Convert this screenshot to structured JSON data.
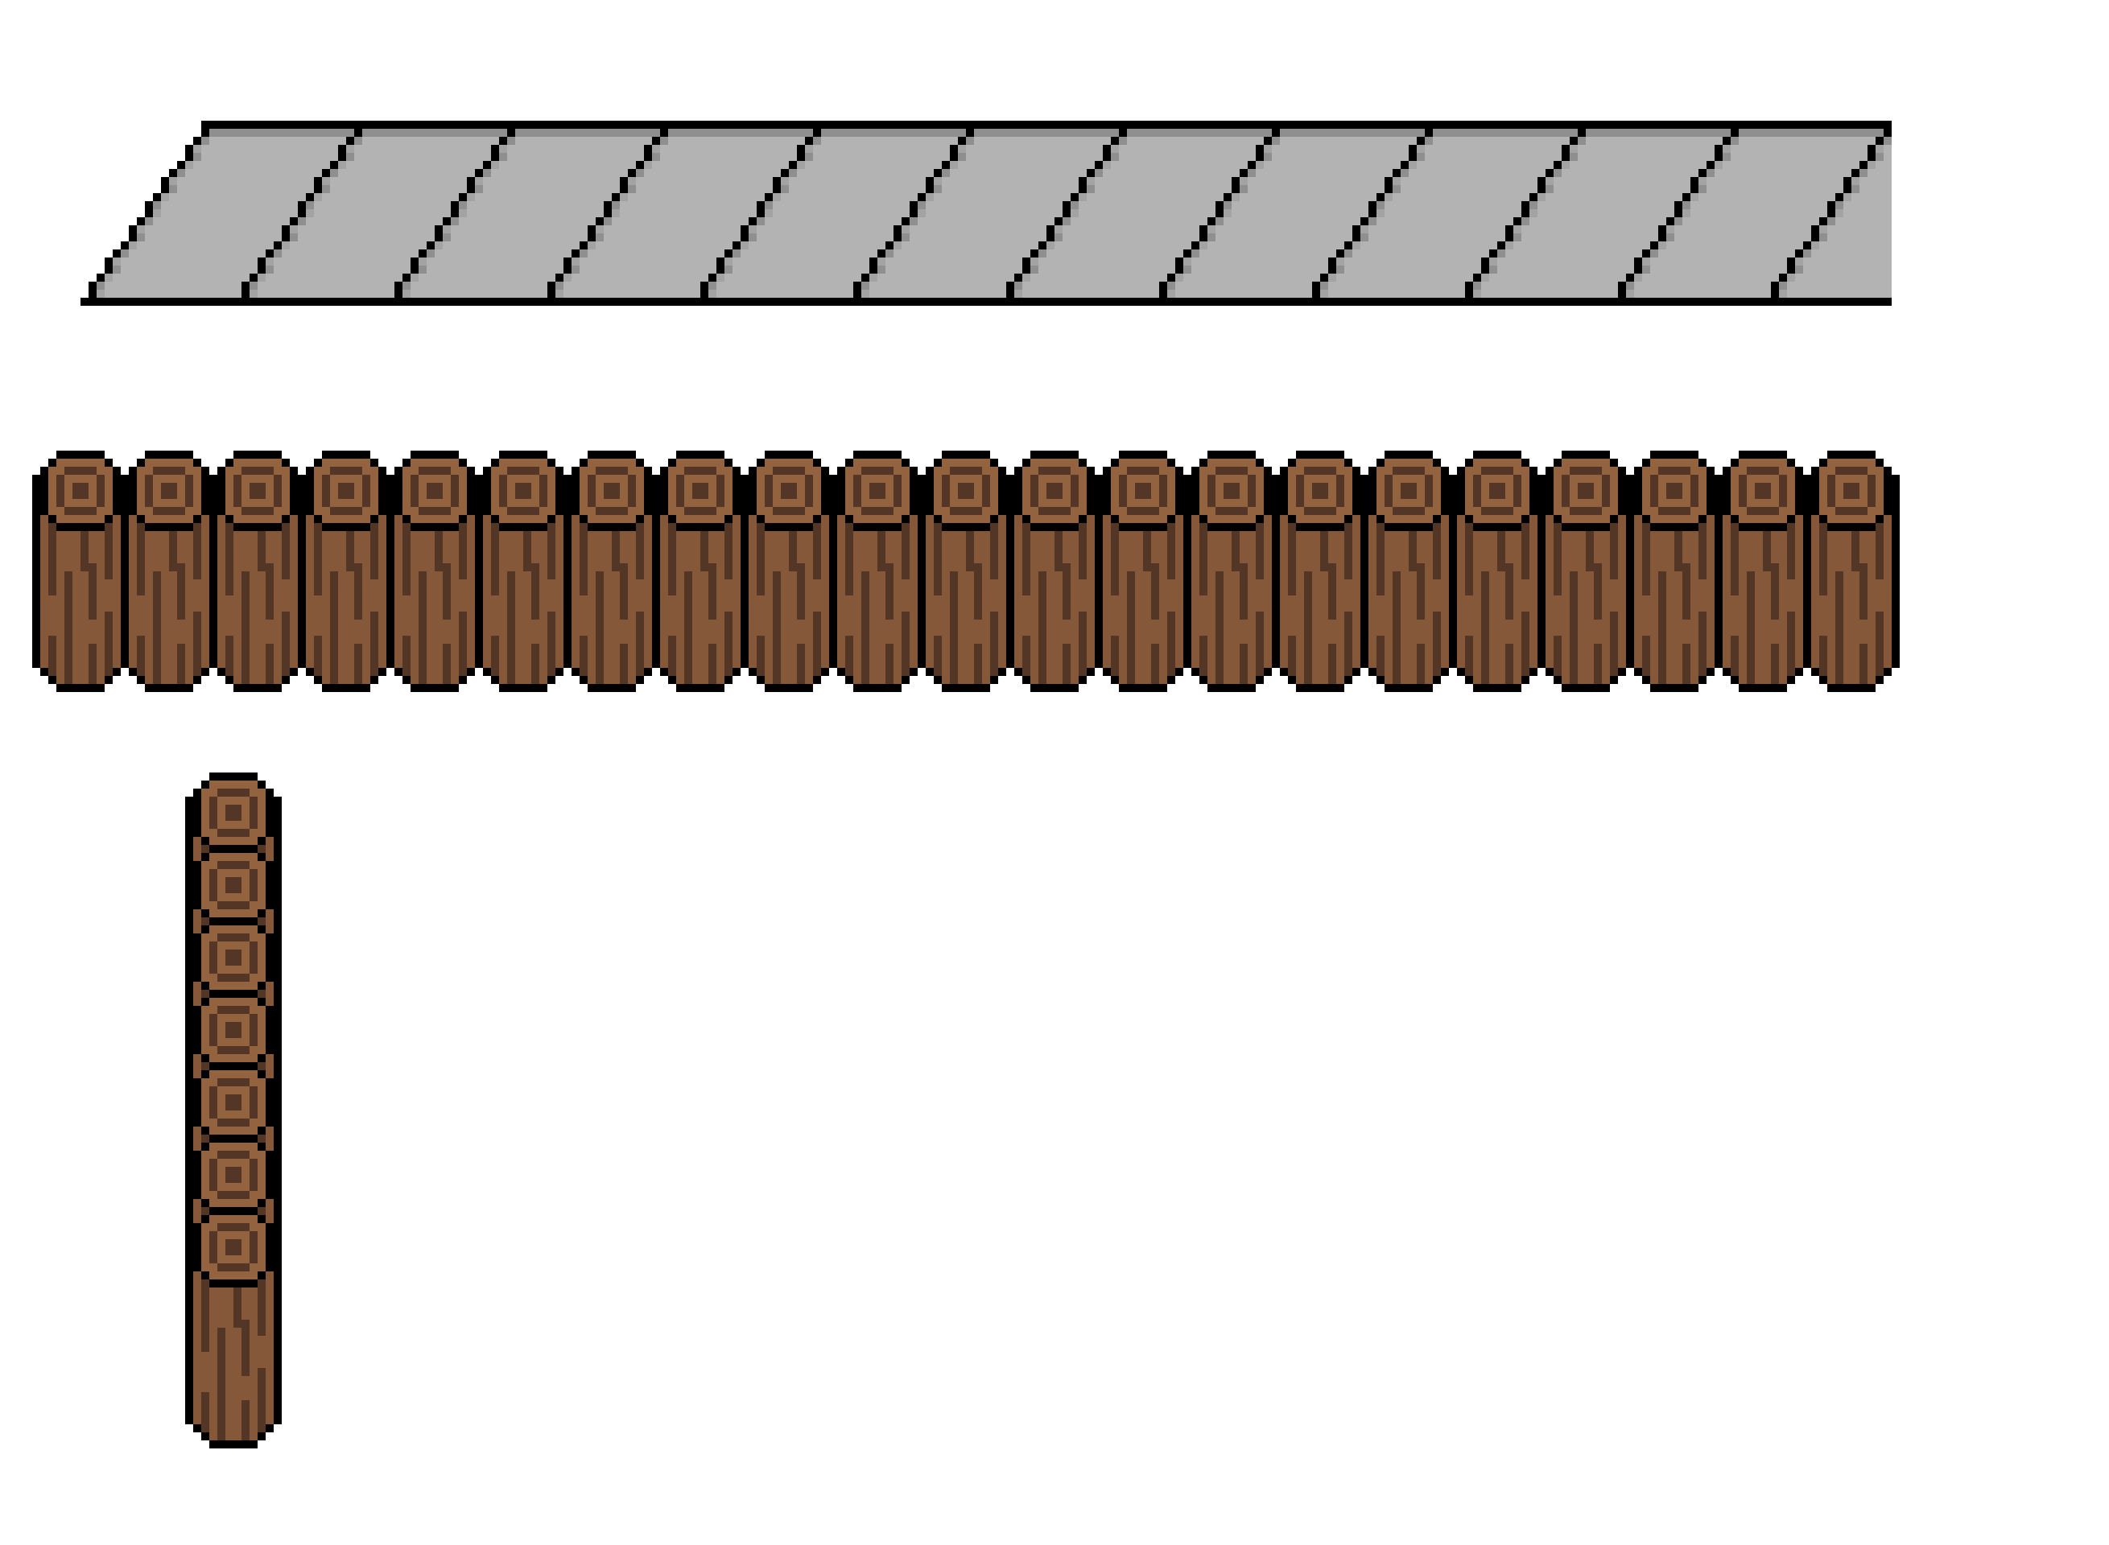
{
  "scene": {
    "background": "#ffffff",
    "roof": {
      "name": "stone-roof-strip",
      "segments": 12,
      "colors": {
        "outline": "#000000",
        "fill": "#b3b3b3",
        "shade": "#8f8f8f",
        "edge_shade": "#a3a3a3"
      }
    },
    "log_row": {
      "name": "horizontal-log-fence",
      "count": 21
    },
    "log_stack": {
      "name": "vertical-log-stack",
      "caps": 7
    },
    "log_colors": {
      "outline": "#000000",
      "ring_light": "#93633f",
      "ring_dark": "#543627",
      "bark": "#85583a"
    }
  }
}
